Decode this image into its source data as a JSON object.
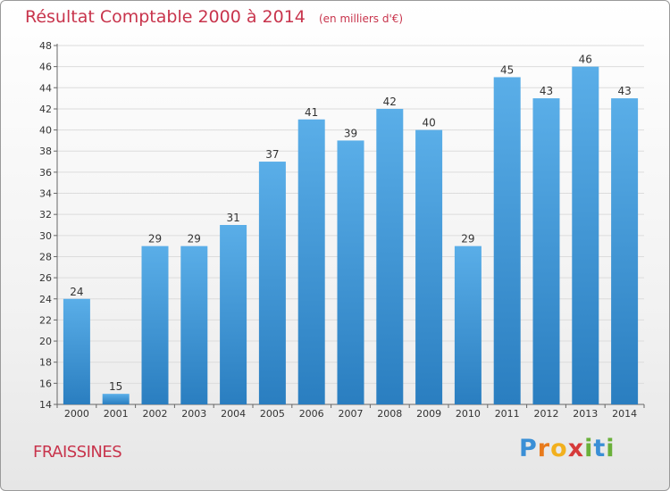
{
  "chart_data": {
    "type": "bar",
    "title": "Résultat Comptable 2000 à 2014",
    "unit_note": "(en milliers d'€)",
    "categories": [
      "2000",
      "2001",
      "2002",
      "2003",
      "2004",
      "2005",
      "2006",
      "2007",
      "2008",
      "2009",
      "2010",
      "2011",
      "2012",
      "2013",
      "2014"
    ],
    "values": [
      24,
      15,
      29,
      29,
      31,
      37,
      41,
      39,
      42,
      40,
      29,
      45,
      43,
      46,
      43
    ],
    "ylim": [
      14,
      48
    ],
    "yticks": [
      14,
      16,
      18,
      20,
      22,
      24,
      26,
      28,
      30,
      32,
      34,
      36,
      38,
      40,
      42,
      44,
      46,
      48
    ],
    "xlabel": "",
    "ylabel": "",
    "grid": true,
    "bar_color_top": "#5aaee8",
    "bar_color_bottom": "#2a7ec0"
  },
  "footer": {
    "place_name": "FRAISSINES",
    "logo_letters": [
      "P",
      "r",
      "o",
      "x",
      "i",
      "t",
      "i"
    ],
    "logo_colors": [
      "#3a8fd6",
      "#e87a1c",
      "#f2b01e",
      "#d63a3a",
      "#6ab03a",
      "#3a8fd6",
      "#6ab03a"
    ]
  }
}
